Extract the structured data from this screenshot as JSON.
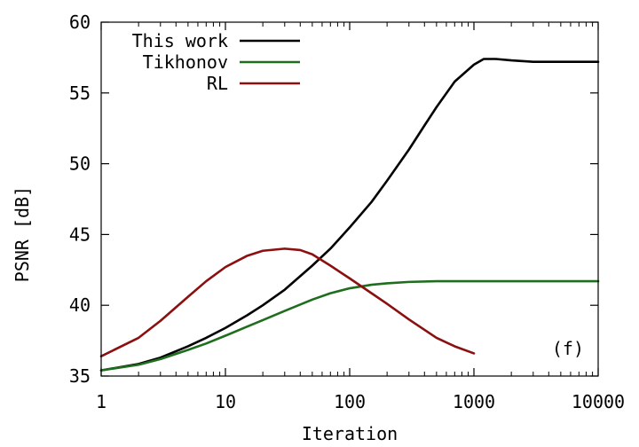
{
  "chart_data": {
    "type": "line",
    "title": "",
    "xlabel": "Iteration",
    "ylabel": "PSNR [dB]",
    "xscale": "log",
    "xlim": [
      1,
      10000
    ],
    "ylim": [
      35,
      60
    ],
    "xticks": [
      1,
      10,
      100,
      1000,
      10000
    ],
    "xtick_labels": [
      "1",
      "10",
      "100",
      "1000",
      "10000"
    ],
    "yticks": [
      35,
      40,
      45,
      50,
      55,
      60
    ],
    "ytick_labels": [
      "35",
      "40",
      "45",
      "50",
      "55",
      "60"
    ],
    "grid": false,
    "legend_position": "top-left",
    "annotation": "(f)",
    "series": [
      {
        "name": "This work",
        "color": "#000000",
        "x": [
          1,
          2,
          3,
          5,
          7,
          10,
          15,
          20,
          30,
          50,
          70,
          100,
          150,
          200,
          300,
          400,
          500,
          700,
          1000,
          1200,
          1500,
          2000,
          3000,
          5000,
          10000
        ],
        "y": [
          35.4,
          35.85,
          36.3,
          37.1,
          37.7,
          38.4,
          39.3,
          40.0,
          41.1,
          42.8,
          44.0,
          45.5,
          47.3,
          48.8,
          51.0,
          52.7,
          54.0,
          55.8,
          57.0,
          57.4,
          57.4,
          57.3,
          57.2,
          57.2,
          57.2
        ]
      },
      {
        "name": "Tikhonov",
        "color": "#1e6e1e",
        "x": [
          1,
          2,
          3,
          5,
          7,
          10,
          15,
          20,
          30,
          50,
          70,
          100,
          150,
          200,
          300,
          500,
          700,
          1000,
          2000,
          5000,
          10000
        ],
        "y": [
          35.4,
          35.8,
          36.2,
          36.85,
          37.3,
          37.85,
          38.5,
          38.95,
          39.6,
          40.4,
          40.85,
          41.2,
          41.45,
          41.55,
          41.65,
          41.7,
          41.7,
          41.7,
          41.7,
          41.7,
          41.7
        ]
      },
      {
        "name": "RL",
        "color": "#8b1010",
        "x": [
          1,
          2,
          3,
          5,
          7,
          10,
          15,
          20,
          30,
          40,
          50,
          70,
          100,
          150,
          200,
          300,
          500,
          700,
          1000
        ],
        "y": [
          36.4,
          37.7,
          38.9,
          40.6,
          41.7,
          42.7,
          43.5,
          43.85,
          44.0,
          43.9,
          43.6,
          42.8,
          41.9,
          40.85,
          40.1,
          39.0,
          37.7,
          37.1,
          36.6
        ]
      }
    ]
  }
}
